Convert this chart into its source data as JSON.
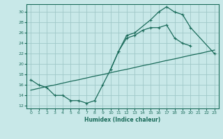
{
  "xlabel": "Humidex (Indice chaleur)",
  "bg_color": "#c8e8e8",
  "grid_color": "#a0c8c8",
  "line_color": "#1a6b5a",
  "xlim": [
    -0.5,
    23.5
  ],
  "ylim": [
    11.5,
    31.5
  ],
  "yticks": [
    12,
    14,
    16,
    18,
    20,
    22,
    24,
    26,
    28,
    30
  ],
  "xticks": [
    0,
    1,
    2,
    3,
    4,
    5,
    6,
    7,
    8,
    9,
    10,
    11,
    12,
    13,
    14,
    15,
    16,
    17,
    18,
    19,
    20,
    21,
    22,
    23
  ],
  "line1_x": [
    0,
    1,
    2,
    3,
    4,
    5,
    6,
    7,
    8,
    9,
    10,
    11,
    12,
    13,
    14,
    15,
    16,
    17,
    18,
    19,
    20,
    21,
    22,
    23
  ],
  "line1_y": [
    15.0,
    15.35,
    15.7,
    16.0,
    16.35,
    16.7,
    17.0,
    17.35,
    17.7,
    18.0,
    18.35,
    18.7,
    19.0,
    19.35,
    19.7,
    20.0,
    20.35,
    20.7,
    21.0,
    21.35,
    21.7,
    22.0,
    22.35,
    22.7
  ],
  "line2_x": [
    0,
    1,
    2,
    3,
    4,
    5,
    6,
    7,
    8,
    9,
    10,
    11,
    12,
    13,
    14,
    15,
    16,
    17,
    18,
    19,
    20
  ],
  "line2_y": [
    17.0,
    16.0,
    15.5,
    14.0,
    14.0,
    13.0,
    13.0,
    12.5,
    13.0,
    16.0,
    19.0,
    22.5,
    25.0,
    25.5,
    26.5,
    27.0,
    27.0,
    27.5,
    25.0,
    24.0,
    23.5
  ],
  "line3_x": [
    10,
    11,
    12,
    13,
    15,
    16,
    17,
    18,
    19,
    20,
    23
  ],
  "line3_y": [
    19.0,
    22.5,
    25.5,
    26.0,
    28.5,
    30.0,
    31.0,
    30.0,
    29.5,
    27.0,
    22.0
  ]
}
